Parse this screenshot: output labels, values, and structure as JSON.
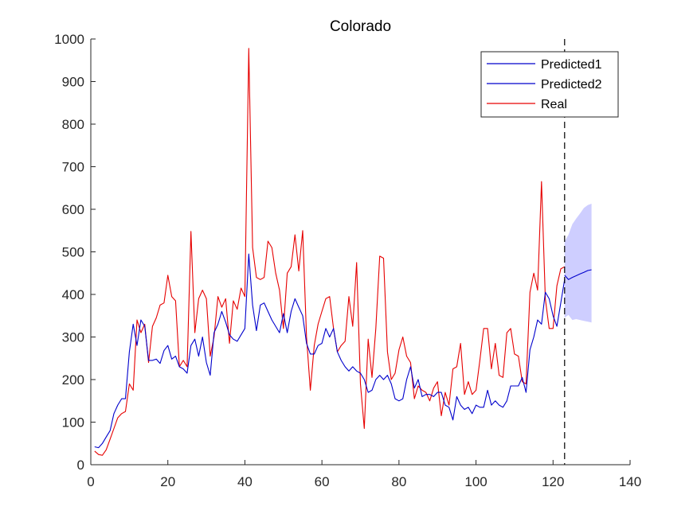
{
  "chart_data": {
    "type": "line",
    "title": "Colorado",
    "xlabel": "",
    "ylabel": "",
    "xlim": [
      0,
      140
    ],
    "ylim": [
      0,
      1000
    ],
    "xticks": [
      0,
      20,
      40,
      60,
      80,
      100,
      120,
      140
    ],
    "yticks": [
      0,
      100,
      200,
      300,
      400,
      500,
      600,
      700,
      800,
      900,
      1000
    ],
    "grid": false,
    "legend_position": "top-right",
    "forecast_start_x": 123,
    "colors": {
      "predicted1": "#0000cc",
      "predicted2": "#0000cc",
      "real": "#e60000",
      "band": "#b3b3ff",
      "axis": "#262626",
      "divider": "#000000"
    },
    "series": [
      {
        "name": "Predicted1",
        "x": [
          1,
          2,
          3,
          4,
          5,
          6,
          7,
          8,
          9,
          10,
          11,
          12,
          13,
          14,
          15,
          16,
          17,
          18,
          19,
          20,
          21,
          22,
          23,
          24,
          25,
          26,
          27,
          28,
          29,
          30,
          31,
          32,
          33,
          34,
          35,
          36,
          37,
          38,
          39,
          40,
          41,
          42,
          43,
          44,
          45,
          46,
          47,
          48,
          49,
          50,
          51,
          52,
          53,
          54,
          55,
          56,
          57,
          58,
          59,
          60,
          61,
          62,
          63,
          64,
          65,
          66,
          67,
          68,
          69,
          70,
          71,
          72,
          73,
          74,
          75,
          76,
          77,
          78,
          79,
          80,
          81,
          82,
          83,
          84,
          85,
          86,
          87,
          88,
          89,
          90,
          91,
          92,
          93,
          94,
          95,
          96,
          97,
          98,
          99,
          100,
          101,
          102,
          103,
          104,
          105,
          106,
          107,
          108,
          109,
          110,
          111,
          112,
          113,
          114,
          115,
          116,
          117,
          118,
          119,
          120,
          121,
          122,
          123
        ],
        "y": [
          42,
          40,
          50,
          65,
          80,
          120,
          140,
          155,
          155,
          265,
          330,
          280,
          340,
          325,
          245,
          245,
          248,
          238,
          268,
          280,
          248,
          255,
          230,
          225,
          215,
          280,
          295,
          255,
          300,
          240,
          210,
          310,
          330,
          360,
          335,
          305,
          295,
          290,
          305,
          320,
          495,
          375,
          315,
          375,
          380,
          360,
          340,
          325,
          310,
          355,
          310,
          360,
          390,
          370,
          350,
          285,
          260,
          260,
          280,
          285,
          320,
          300,
          320,
          265,
          245,
          230,
          220,
          230,
          220,
          215,
          200,
          170,
          175,
          200,
          210,
          200,
          210,
          190,
          155,
          150,
          155,
          200,
          230,
          180,
          200,
          160,
          165,
          165,
          160,
          170,
          170,
          140,
          135,
          105,
          160,
          140,
          130,
          135,
          120,
          140,
          135,
          135,
          175,
          140,
          150,
          140,
          135,
          150,
          185,
          185,
          185,
          205,
          170,
          270,
          300,
          340,
          330,
          405,
          390,
          350,
          325,
          380,
          435
        ]
      },
      {
        "name": "Predicted2",
        "x": [
          123,
          124,
          125,
          126,
          127,
          128,
          129,
          130
        ],
        "y": [
          445,
          435,
          440,
          444,
          448,
          452,
          456,
          458
        ]
      },
      {
        "name": "Real",
        "x": [
          1,
          2,
          3,
          4,
          5,
          6,
          7,
          8,
          9,
          10,
          11,
          12,
          13,
          14,
          15,
          16,
          17,
          18,
          19,
          20,
          21,
          22,
          23,
          24,
          25,
          26,
          27,
          28,
          29,
          30,
          31,
          32,
          33,
          34,
          35,
          36,
          37,
          38,
          39,
          40,
          41,
          42,
          43,
          44,
          45,
          46,
          47,
          48,
          49,
          50,
          51,
          52,
          53,
          54,
          55,
          56,
          57,
          58,
          59,
          60,
          61,
          62,
          63,
          64,
          65,
          66,
          67,
          68,
          69,
          70,
          71,
          72,
          73,
          74,
          75,
          76,
          77,
          78,
          79,
          80,
          81,
          82,
          83,
          84,
          85,
          86,
          87,
          88,
          89,
          90,
          91,
          92,
          93,
          94,
          95,
          96,
          97,
          98,
          99,
          100,
          101,
          102,
          103,
          104,
          105,
          106,
          107,
          108,
          109,
          110,
          111,
          112,
          113,
          114,
          115,
          116,
          117,
          118,
          119,
          120,
          121,
          122,
          123
        ],
        "y": [
          32,
          24,
          22,
          35,
          60,
          85,
          110,
          120,
          125,
          190,
          175,
          340,
          310,
          330,
          240,
          325,
          345,
          375,
          380,
          445,
          395,
          385,
          230,
          245,
          230,
          548,
          310,
          390,
          410,
          390,
          255,
          300,
          395,
          370,
          390,
          285,
          385,
          365,
          415,
          395,
          978,
          510,
          440,
          435,
          440,
          525,
          510,
          450,
          410,
          320,
          450,
          465,
          540,
          455,
          550,
          300,
          175,
          280,
          330,
          360,
          390,
          395,
          320,
          265,
          280,
          290,
          395,
          325,
          475,
          190,
          85,
          295,
          205,
          320,
          490,
          485,
          265,
          200,
          215,
          270,
          300,
          255,
          240,
          155,
          185,
          175,
          170,
          150,
          180,
          195,
          115,
          170,
          140,
          225,
          230,
          285,
          165,
          195,
          165,
          175,
          245,
          320,
          320,
          225,
          285,
          210,
          205,
          310,
          320,
          260,
          255,
          195,
          190,
          405,
          450,
          410,
          665,
          390,
          320,
          320,
          420,
          460,
          465
        ]
      }
    ],
    "prediction_band": {
      "x": [
        123,
        124,
        125,
        126,
        127,
        128,
        129,
        130
      ],
      "lower": [
        345,
        352,
        340,
        342,
        340,
        338,
        336,
        334
      ],
      "upper": [
        525,
        540,
        565,
        578,
        590,
        603,
        610,
        613
      ]
    }
  },
  "legend": {
    "items": [
      {
        "label": "Predicted1"
      },
      {
        "label": "Predicted2"
      },
      {
        "label": "Real"
      }
    ]
  }
}
